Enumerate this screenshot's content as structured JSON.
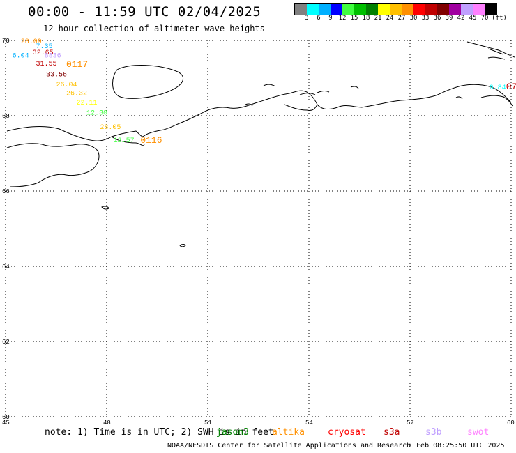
{
  "header": {
    "title": "00:00 - 11:59 UTC 02/04/2025",
    "subtitle": "12 hour collection of altimeter wave heights"
  },
  "colorbar": {
    "colors": [
      "#808080",
      "#00ffff",
      "#00b0ff",
      "#0000ff",
      "#40ff40",
      "#00c000",
      "#008000",
      "#ffff00",
      "#ffc000",
      "#ff9000",
      "#ff0000",
      "#c00000",
      "#800000",
      "#a000a0",
      "#c0a0ff",
      "#ff80ff",
      "#000000"
    ],
    "ticks": [
      "3",
      "6",
      "9",
      "12",
      "15",
      "18",
      "21",
      "24",
      "27",
      "30",
      "33",
      "36",
      "39",
      "42",
      "45",
      "70"
    ],
    "unit": "(ft)"
  },
  "map": {
    "lon_range": [
      45,
      60
    ],
    "lat_range": [
      60,
      70
    ],
    "lon_ticks": [
      "45",
      "48",
      "51",
      "54",
      "57",
      "60"
    ],
    "lat_ticks": [
      "70",
      "68",
      "66",
      "64",
      "62",
      "60"
    ],
    "grid": "dotted"
  },
  "observations": [
    {
      "text": "28.09",
      "lon": 45.45,
      "lat": 69.93,
      "color": "#ff9000"
    },
    {
      "text": "7.35",
      "lon": 45.9,
      "lat": 69.8,
      "color": "#00b0ff"
    },
    {
      "text": "32.65",
      "lon": 45.8,
      "lat": 69.63,
      "color": "#c00000"
    },
    {
      "text": "6.04",
      "lon": 45.2,
      "lat": 69.55,
      "color": "#00b0ff"
    },
    {
      "text": "8836",
      "lon": 46.15,
      "lat": 69.55,
      "color": "#c0a0ff"
    },
    {
      "text": "31.55",
      "lon": 45.9,
      "lat": 69.33,
      "color": "#c00000"
    },
    {
      "text": "0117",
      "lon": 46.8,
      "lat": 69.3,
      "color": "#ff9000",
      "big": true
    },
    {
      "text": "33.56",
      "lon": 46.2,
      "lat": 69.05,
      "color": "#800000"
    },
    {
      "text": "26.04",
      "lon": 46.5,
      "lat": 68.78,
      "color": "#ffc000"
    },
    {
      "text": "26.32",
      "lon": 46.8,
      "lat": 68.55,
      "color": "#ffc000"
    },
    {
      "text": "22.11",
      "lon": 47.1,
      "lat": 68.3,
      "color": "#ffff00"
    },
    {
      "text": "12.30",
      "lon": 47.4,
      "lat": 68.03,
      "color": "#40ff40"
    },
    {
      "text": "28.05",
      "lon": 47.8,
      "lat": 67.65,
      "color": "#ffc000"
    },
    {
      "text": "12.57",
      "lon": 48.2,
      "lat": 67.3,
      "color": "#40ff40"
    },
    {
      "text": "0116",
      "lon": 49.0,
      "lat": 67.28,
      "color": "#ff9000",
      "big": true
    },
    {
      "text": "6.84",
      "lon": 59.35,
      "lat": 68.7,
      "color": "#00ffff"
    },
    {
      "text": "07",
      "lon": 59.85,
      "lat": 68.7,
      "color": "#c00000",
      "big": true
    }
  ],
  "footnote": {
    "note": "note: 1) Time is in UTC; 2) SWH is in feet",
    "missions": [
      {
        "label": "jason3",
        "color": "#008000"
      },
      {
        "label": "altika",
        "color": "#ff9000"
      },
      {
        "label": "cryosat",
        "color": "#ff0000"
      },
      {
        "label": "s3a",
        "color": "#c00000"
      },
      {
        "label": "s3b",
        "color": "#c0a0ff"
      },
      {
        "label": "swot",
        "color": "#ff80ff"
      }
    ]
  },
  "credit": "NOAA/NESDIS Center for Satellite Applications and Research",
  "timestamp": "7 Feb 08:25:50 UTC 2025"
}
